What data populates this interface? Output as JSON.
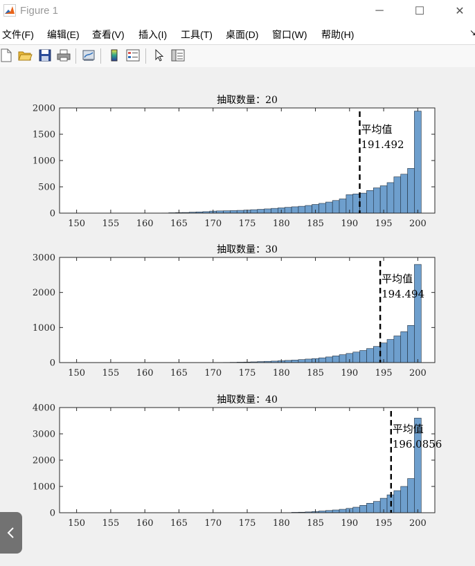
{
  "window": {
    "title": "Figure 1",
    "minimize_glyph": "─",
    "maximize_glyph": "☐",
    "close_glyph": "✕"
  },
  "menu": [
    "文件(F)",
    "编辑(E)",
    "查看(V)",
    "插入(I)",
    "工具(T)",
    "桌面(D)",
    "窗口(W)",
    "帮助(H)"
  ],
  "toolbar_icons": [
    "new-figure-icon",
    "open-file-icon",
    "save-icon",
    "print-icon",
    "link-plot-icon",
    "colorbar-icon",
    "legend-icon",
    "pointer-icon",
    "property-inspector-icon"
  ],
  "colors": {
    "bar_fill": "#6e9fcd",
    "bar_edge": "#1f2d3d",
    "axes_bg": "#ffffff",
    "figure_bg": "#f0f0f0"
  },
  "chart_data": [
    {
      "type": "bar",
      "title": "抽取数量：20",
      "xlim": [
        147.5,
        202.5
      ],
      "ylim": [
        0,
        2000
      ],
      "xticks": [
        "150",
        "155",
        "160",
        "165",
        "170",
        "175",
        "180",
        "185",
        "190",
        "195",
        "200"
      ],
      "yticks": [
        "0",
        "500",
        "1000",
        "1500",
        "2000"
      ],
      "bin_centers": [
        163,
        164,
        165,
        166,
        167,
        168,
        169,
        170,
        171,
        172,
        173,
        174,
        175,
        176,
        177,
        178,
        179,
        180,
        181,
        182,
        183,
        184,
        185,
        186,
        187,
        188,
        189,
        190,
        191,
        192,
        193,
        194,
        195,
        196,
        197,
        198,
        199,
        200
      ],
      "values": [
        3,
        7,
        10,
        12,
        18,
        23,
        28,
        38,
        42,
        45,
        48,
        52,
        58,
        65,
        72,
        80,
        90,
        100,
        110,
        120,
        130,
        145,
        165,
        185,
        210,
        240,
        270,
        350,
        365,
        380,
        430,
        480,
        520,
        580,
        690,
        740,
        850,
        1940
      ],
      "mean": {
        "label": "平均值",
        "value": "191.492",
        "x": 191.492
      }
    },
    {
      "type": "bar",
      "title": "抽取数量：30",
      "xlim": [
        147.5,
        202.5
      ],
      "ylim": [
        0,
        3000
      ],
      "xticks": [
        "150",
        "155",
        "160",
        "165",
        "170",
        "175",
        "180",
        "185",
        "190",
        "195",
        "200"
      ],
      "yticks": [
        "0",
        "1000",
        "2000",
        "3000"
      ],
      "bin_centers": [
        172,
        173,
        174,
        175,
        176,
        177,
        178,
        179,
        180,
        181,
        182,
        183,
        184,
        185,
        186,
        187,
        188,
        189,
        190,
        191,
        192,
        193,
        194,
        195,
        196,
        197,
        198,
        199,
        200
      ],
      "values": [
        5,
        8,
        12,
        15,
        20,
        28,
        35,
        42,
        52,
        62,
        72,
        85,
        100,
        115,
        135,
        160,
        190,
        225,
        260,
        300,
        345,
        400,
        460,
        560,
        660,
        760,
        880,
        1060,
        2800
      ],
      "mean": {
        "label": "平均值",
        "value": "194.494",
        "x": 194.494
      }
    },
    {
      "type": "bar",
      "title": "抽取数量：40",
      "xlim": [
        147.5,
        202.5
      ],
      "ylim": [
        0,
        4000
      ],
      "xticks": [
        "150",
        "155",
        "160",
        "165",
        "170",
        "175",
        "180",
        "185",
        "190",
        "195",
        "200"
      ],
      "yticks": [
        "0",
        "1000",
        "2000",
        "3000",
        "4000"
      ],
      "bin_centers": [
        182,
        183,
        184,
        185,
        186,
        187,
        188,
        189,
        190,
        191,
        192,
        193,
        194,
        195,
        196,
        197,
        198,
        199,
        200
      ],
      "values": [
        15,
        20,
        30,
        45,
        65,
        85,
        105,
        130,
        165,
        210,
        280,
        360,
        430,
        550,
        680,
        840,
        1000,
        1300,
        3600
      ],
      "mean": {
        "label": "平均值",
        "value": "196.0856",
        "x": 196.0856
      }
    }
  ]
}
